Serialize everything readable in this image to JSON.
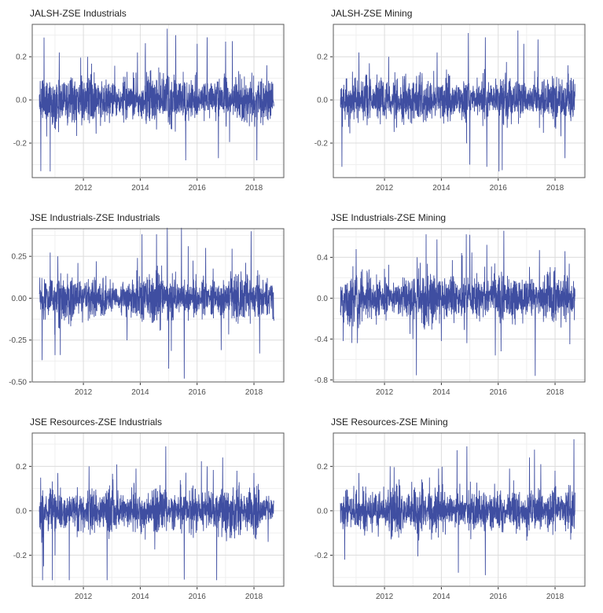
{
  "figure": {
    "background": "#FFFFFF",
    "columns": 2,
    "rows": 3
  },
  "style": {
    "line_color": "#3F4EA1",
    "panel_border": "#595959",
    "grid_major": "#DCDCDC",
    "grid_minor": "#EFEFEF",
    "tick_mark_color": "#333333",
    "tick_label_color": "#4D4D4D",
    "title_color": "#1F1F1F",
    "panel_background": "#FFFFFF"
  },
  "axis": {
    "x_axis_range": [
      2010.2,
      2019.05
    ],
    "x_data_range": [
      2010.45,
      2018.7
    ],
    "x_major_ticks": [
      2012,
      2014,
      2016,
      2018
    ],
    "x_major_labels": [
      "2012",
      "2014",
      "2016",
      "2018"
    ],
    "x_minor_ticks": [
      2011,
      2013,
      2015,
      2017,
      2019
    ]
  },
  "chart_data": [
    {
      "type": "line",
      "title": "JALSH-ZSE Industrials",
      "ylim": [
        -0.36,
        0.35
      ],
      "ytick_values": [
        0.2,
        0.0,
        -0.2
      ],
      "ytick_labels": [
        "0.2",
        "0.0",
        "-0.2"
      ],
      "seed": 11,
      "n": 1600,
      "sd": 0.045,
      "tail_prob": 0.018,
      "spikes": [
        {
          "x": 2010.5,
          "y": -0.33
        },
        {
          "x": 2011.15,
          "y": 0.22
        },
        {
          "x": 2012.15,
          "y": 0.2
        },
        {
          "x": 2013.9,
          "y": 0.22
        },
        {
          "x": 2014.95,
          "y": 0.33
        },
        {
          "x": 2015.25,
          "y": 0.3
        },
        {
          "x": 2015.6,
          "y": -0.28
        },
        {
          "x": 2016.0,
          "y": 0.26
        },
        {
          "x": 2016.35,
          "y": 0.29
        },
        {
          "x": 2016.75,
          "y": -0.27
        },
        {
          "x": 2017.0,
          "y": 0.27
        },
        {
          "x": 2018.1,
          "y": -0.28
        },
        {
          "x": 2018.45,
          "y": 0.16
        }
      ]
    },
    {
      "type": "line",
      "title": "JALSH-ZSE Mining",
      "ylim": [
        -0.36,
        0.35
      ],
      "ytick_values": [
        0.2,
        0.0,
        -0.2
      ],
      "ytick_labels": [
        "0.2",
        "0.0",
        "-0.2"
      ],
      "seed": 23,
      "n": 1600,
      "sd": 0.045,
      "tail_prob": 0.018,
      "spikes": [
        {
          "x": 2010.5,
          "y": -0.31
        },
        {
          "x": 2011.1,
          "y": 0.22
        },
        {
          "x": 2012.15,
          "y": 0.2
        },
        {
          "x": 2013.85,
          "y": 0.22
        },
        {
          "x": 2014.95,
          "y": 0.31
        },
        {
          "x": 2015.0,
          "y": -0.3
        },
        {
          "x": 2015.55,
          "y": 0.29
        },
        {
          "x": 2015.6,
          "y": -0.31
        },
        {
          "x": 2016.9,
          "y": 0.26
        },
        {
          "x": 2017.4,
          "y": 0.28
        },
        {
          "x": 2018.35,
          "y": -0.27
        },
        {
          "x": 2018.45,
          "y": 0.16
        }
      ]
    },
    {
      "type": "line",
      "title": "JSE Industrials-ZSE Industrials",
      "ylim": [
        -0.5,
        0.415
      ],
      "ytick_values": [
        0.25,
        0.0,
        -0.25,
        -0.5
      ],
      "ytick_labels": [
        "0.25",
        "0.00",
        "-0.25",
        "-0.50"
      ],
      "seed": 37,
      "n": 1600,
      "sd": 0.055,
      "tail_prob": 0.02,
      "spikes": [
        {
          "x": 2010.55,
          "y": -0.37
        },
        {
          "x": 2011.0,
          "y": -0.34
        },
        {
          "x": 2011.1,
          "y": 0.25
        },
        {
          "x": 2013.9,
          "y": 0.24
        },
        {
          "x": 2014.95,
          "y": 0.42
        },
        {
          "x": 2015.0,
          "y": -0.42
        },
        {
          "x": 2015.45,
          "y": 0.42
        },
        {
          "x": 2015.55,
          "y": -0.48
        },
        {
          "x": 2016.3,
          "y": 0.3
        },
        {
          "x": 2016.85,
          "y": -0.31
        },
        {
          "x": 2017.9,
          "y": 0.4
        },
        {
          "x": 2018.2,
          "y": -0.33
        }
      ]
    },
    {
      "type": "line",
      "title": "JSE Industrials-ZSE Mining",
      "ylim": [
        -0.82,
        0.68
      ],
      "ytick_values": [
        0.4,
        0.0,
        -0.4,
        -0.8
      ],
      "ytick_labels": [
        "0.4",
        "0.0",
        "-0.4",
        "-0.8"
      ],
      "seed": 51,
      "n": 1600,
      "sd": 0.1,
      "tail_prob": 0.02,
      "spikes": [
        {
          "x": 2010.55,
          "y": -0.42
        },
        {
          "x": 2011.0,
          "y": 0.48
        },
        {
          "x": 2011.05,
          "y": -0.44
        },
        {
          "x": 2013.0,
          "y": -0.4
        },
        {
          "x": 2013.15,
          "y": 0.4
        },
        {
          "x": 2014.0,
          "y": -0.42
        },
        {
          "x": 2014.9,
          "y": -0.44
        },
        {
          "x": 2015.0,
          "y": 0.62
        },
        {
          "x": 2015.9,
          "y": -0.56
        },
        {
          "x": 2016.1,
          "y": -0.52
        },
        {
          "x": 2016.2,
          "y": 0.66
        },
        {
          "x": 2017.3,
          "y": -0.76
        },
        {
          "x": 2017.45,
          "y": 0.47
        },
        {
          "x": 2018.35,
          "y": 0.46
        }
      ]
    },
    {
      "type": "line",
      "title": "JSE Resources-ZSE Industrials",
      "ylim": [
        -0.34,
        0.35
      ],
      "ytick_values": [
        0.2,
        0.0,
        -0.2
      ],
      "ytick_labels": [
        "0.2",
        "0.0",
        "-0.2"
      ],
      "seed": 67,
      "n": 1600,
      "sd": 0.042,
      "tail_prob": 0.016,
      "spikes": [
        {
          "x": 2010.6,
          "y": -0.25
        },
        {
          "x": 2011.1,
          "y": 0.17
        },
        {
          "x": 2012.2,
          "y": 0.2
        },
        {
          "x": 2013.85,
          "y": 0.19
        },
        {
          "x": 2014.9,
          "y": 0.29
        },
        {
          "x": 2015.55,
          "y": -0.31
        },
        {
          "x": 2016.35,
          "y": 0.2
        },
        {
          "x": 2016.9,
          "y": 0.24
        },
        {
          "x": 2017.4,
          "y": 0.18
        },
        {
          "x": 2018.0,
          "y": 0.17
        },
        {
          "x": 2018.5,
          "y": -0.14
        }
      ]
    },
    {
      "type": "line",
      "title": "JSE Resources-ZSE Mining",
      "ylim": [
        -0.34,
        0.35
      ],
      "ytick_values": [
        0.2,
        0.0,
        -0.2
      ],
      "ytick_labels": [
        "0.2",
        "0.0",
        "-0.2"
      ],
      "seed": 79,
      "n": 1600,
      "sd": 0.042,
      "tail_prob": 0.016,
      "spikes": [
        {
          "x": 2010.6,
          "y": -0.22
        },
        {
          "x": 2011.1,
          "y": 0.17
        },
        {
          "x": 2012.2,
          "y": 0.2
        },
        {
          "x": 2013.9,
          "y": 0.19
        },
        {
          "x": 2014.9,
          "y": 0.29
        },
        {
          "x": 2015.55,
          "y": -0.29
        },
        {
          "x": 2016.4,
          "y": 0.19
        },
        {
          "x": 2017.1,
          "y": 0.24
        },
        {
          "x": 2017.5,
          "y": 0.21
        },
        {
          "x": 2018.0,
          "y": 0.18
        },
        {
          "x": 2018.55,
          "y": -0.13
        }
      ]
    }
  ]
}
